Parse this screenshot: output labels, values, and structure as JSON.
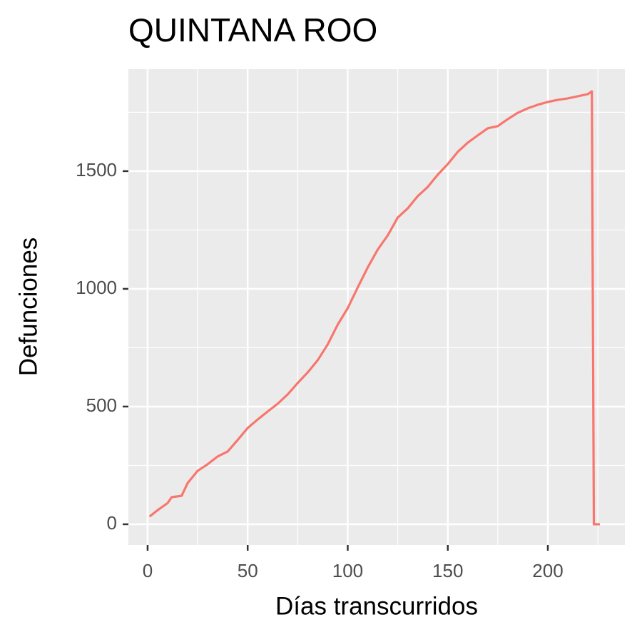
{
  "chart_data": {
    "type": "line",
    "title": "QUINTANA ROO",
    "x_label": "Días transcurridos",
    "y_label": "Defunciones",
    "x": [
      1,
      5,
      10,
      12,
      17,
      20,
      25,
      30,
      35,
      40,
      45,
      50,
      55,
      60,
      65,
      70,
      75,
      80,
      85,
      90,
      95,
      100,
      105,
      110,
      115,
      120,
      125,
      130,
      135,
      140,
      145,
      150,
      155,
      160,
      165,
      170,
      175,
      180,
      185,
      190,
      195,
      200,
      205,
      210,
      215,
      220,
      222,
      223,
      226
    ],
    "series": [
      {
        "color": "#F8766D",
        "values": [
          33,
          60,
          90,
          115,
          121,
          175,
          227,
          255,
          288,
          309,
          358,
          409,
          445,
          479,
          512,
          552,
          600,
          645,
          697,
          764,
          848,
          918,
          1006,
          1091,
          1167,
          1227,
          1303,
          1342,
          1394,
          1433,
          1485,
          1530,
          1582,
          1621,
          1652,
          1682,
          1691,
          1721,
          1748,
          1767,
          1782,
          1794,
          1803,
          1809,
          1818,
          1827,
          1839,
          0,
          0
        ]
      }
    ],
    "xlim": [
      -9.6,
      238.5
    ],
    "ylim": [
      -88,
      1933
    ],
    "xticks": [
      0,
      50,
      100,
      150,
      200
    ],
    "yticks": [
      0,
      500,
      1000,
      1500
    ],
    "grid": true
  }
}
